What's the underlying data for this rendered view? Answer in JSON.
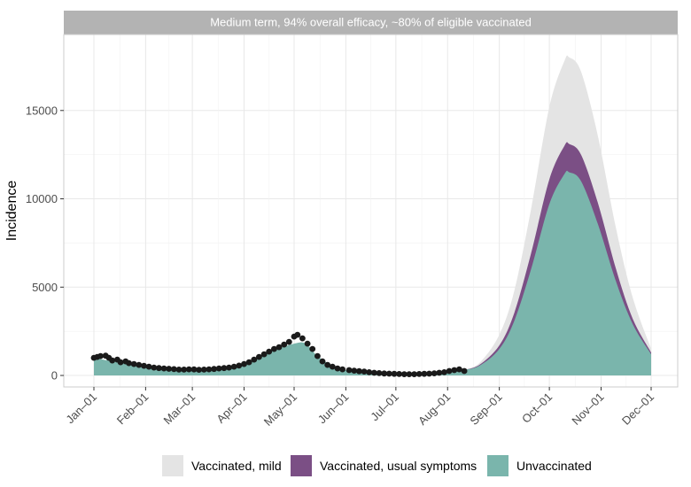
{
  "chart_data": {
    "type": "area",
    "panel_title": "Medium term, 94% overall efficacy, ~80% of eligible vaccinated",
    "xlabel": "",
    "ylabel": "Incidence",
    "ylim": [
      -650,
      19300
    ],
    "yticks": [
      0,
      5000,
      10000,
      15000
    ],
    "x_tick_labels": [
      "Jan–01",
      "Feb–01",
      "Mar–01",
      "Apr–01",
      "May–01",
      "Jun–01",
      "Jul–01",
      "Aug–01",
      "Sep–01",
      "Oct–01",
      "Nov–01",
      "Dec–01"
    ],
    "x_tick_dates": [
      "01-01",
      "02-01",
      "03-01",
      "04-01",
      "05-01",
      "06-01",
      "07-01",
      "08-01",
      "09-01",
      "10-01",
      "11-01",
      "12-01"
    ],
    "x_range": [
      "01-01",
      "12-01"
    ],
    "grid": true,
    "legend_position": "bottom",
    "colors": {
      "vaccinated_mild": "#e4e4e4",
      "vaccinated_usual": "#7b4f85",
      "unvaccinated": "#7ab5ac",
      "observed": "#1a1a1a",
      "strip": "#b3b3b3",
      "panel_border": "#cccccc"
    },
    "series": [
      {
        "name": "Unvaccinated",
        "x": [
          "01-01",
          "01-15",
          "02-01",
          "02-15",
          "03-01",
          "03-15",
          "04-01",
          "04-15",
          "05-01",
          "05-08",
          "05-15",
          "05-25",
          "06-01",
          "06-15",
          "07-01",
          "07-15",
          "08-01",
          "08-10",
          "08-20",
          "09-01",
          "09-10",
          "09-20",
          "10-01",
          "10-10",
          "10-13",
          "10-20",
          "10-30",
          "11-10",
          "11-20",
          "12-01"
        ],
        "values": [
          1000,
          750,
          500,
          350,
          340,
          450,
          650,
          1300,
          1800,
          1800,
          1100,
          500,
          300,
          150,
          60,
          60,
          150,
          300,
          550,
          1500,
          3100,
          6000,
          9700,
          11400,
          11500,
          11000,
          8600,
          5300,
          2900,
          1200
        ]
      },
      {
        "name": "Vaccinated, usual symptoms",
        "x": [
          "08-10",
          "08-20",
          "09-01",
          "09-10",
          "09-20",
          "10-01",
          "10-10",
          "10-13",
          "10-20",
          "10-30",
          "11-10",
          "11-20",
          "12-01"
        ],
        "values": [
          300,
          600,
          1700,
          3550,
          6900,
          11100,
          13000,
          13100,
          12500,
          9800,
          6000,
          3200,
          1300
        ]
      },
      {
        "name": "Vaccinated, mild",
        "x": [
          "08-10",
          "08-20",
          "09-01",
          "09-10",
          "09-20",
          "10-01",
          "10-10",
          "10-13",
          "10-20",
          "10-30",
          "11-10",
          "11-20",
          "12-01"
        ],
        "values": [
          300,
          700,
          2300,
          4800,
          9400,
          15200,
          17800,
          18000,
          17200,
          13600,
          8300,
          4400,
          1500
        ]
      }
    ],
    "observed_points": {
      "x": [
        "01-01",
        "01-03",
        "01-05",
        "01-08",
        "01-10",
        "01-12",
        "01-15",
        "01-17",
        "01-20",
        "01-22",
        "01-25",
        "01-28",
        "01-31",
        "02-03",
        "02-06",
        "02-09",
        "02-12",
        "02-15",
        "02-18",
        "02-21",
        "02-24",
        "02-27",
        "03-02",
        "03-05",
        "03-08",
        "03-11",
        "03-14",
        "03-17",
        "03-20",
        "03-23",
        "03-26",
        "03-29",
        "04-01",
        "04-04",
        "04-07",
        "04-10",
        "04-13",
        "04-16",
        "04-19",
        "04-22",
        "04-25",
        "04-28",
        "05-01",
        "05-03",
        "05-06",
        "05-09",
        "05-12",
        "05-15",
        "05-18",
        "05-21",
        "05-24",
        "05-27",
        "05-30",
        "06-03",
        "06-06",
        "06-09",
        "06-12",
        "06-15",
        "06-18",
        "06-21",
        "06-24",
        "06-27",
        "06-30",
        "07-03",
        "07-06",
        "07-09",
        "07-12",
        "07-15",
        "07-18",
        "07-21",
        "07-24",
        "07-27",
        "07-30",
        "08-02",
        "08-05",
        "08-08",
        "08-11"
      ],
      "values": [
        1000,
        1050,
        1100,
        1120,
        1000,
        850,
        900,
        750,
        800,
        700,
        650,
        600,
        550,
        500,
        450,
        420,
        400,
        380,
        360,
        330,
        330,
        350,
        340,
        320,
        330,
        350,
        370,
        400,
        420,
        450,
        500,
        560,
        650,
        750,
        900,
        1050,
        1200,
        1350,
        1500,
        1600,
        1750,
        1900,
        2200,
        2300,
        2100,
        1800,
        1500,
        1100,
        800,
        600,
        500,
        400,
        350,
        300,
        270,
        240,
        220,
        180,
        150,
        130,
        110,
        100,
        90,
        80,
        70,
        70,
        70,
        80,
        90,
        100,
        120,
        150,
        180,
        250,
        300,
        350,
        250
      ]
    },
    "legend": [
      "Vaccinated, mild",
      "Vaccinated, usual symptoms",
      "Unvaccinated"
    ]
  }
}
